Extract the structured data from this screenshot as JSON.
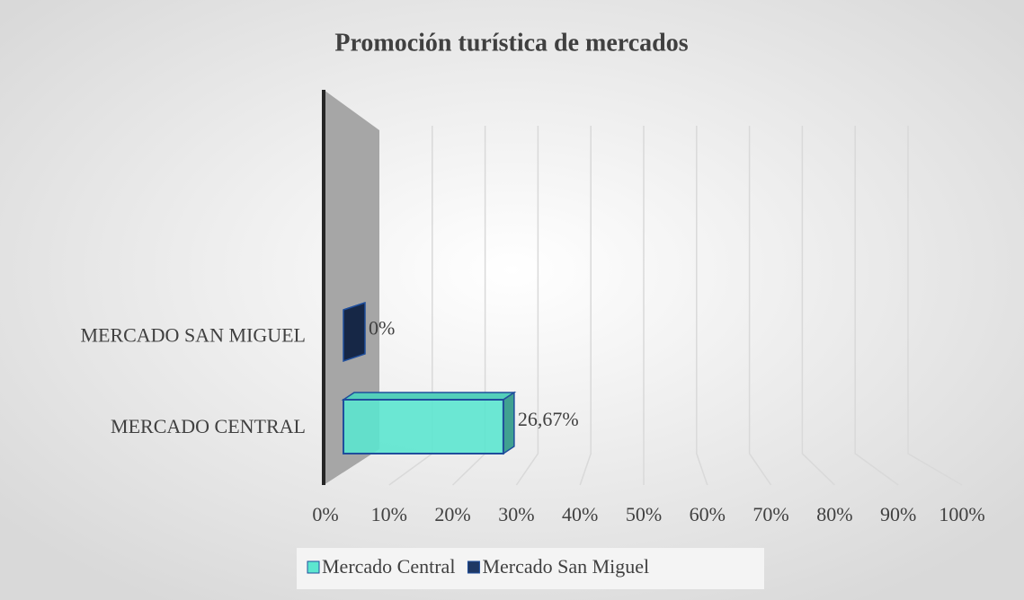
{
  "chart_data": {
    "type": "bar3d",
    "title": "Promoción turística de mercados",
    "categories": [
      "MERCADO SAN MIGUEL",
      "MERCADO CENTRAL"
    ],
    "series": [
      {
        "name": "Mercado Central",
        "color": "#5ce6cf",
        "values": [
          null,
          26.67
        ],
        "value_labels": [
          null,
          "26,67%"
        ]
      },
      {
        "name": "Mercado San Miguel",
        "color": "#1f3864",
        "values": [
          0,
          null
        ],
        "value_labels": [
          "0%",
          null
        ]
      }
    ],
    "xlim": [
      0,
      100
    ],
    "xticks": [
      {
        "value": 0,
        "label": "0%"
      },
      {
        "value": 10,
        "label": "10%"
      },
      {
        "value": 20,
        "label": "20%"
      },
      {
        "value": 30,
        "label": "30%"
      },
      {
        "value": 40,
        "label": "40%"
      },
      {
        "value": 50,
        "label": "50%"
      },
      {
        "value": 60,
        "label": "60%"
      },
      {
        "value": 70,
        "label": "70%"
      },
      {
        "value": 80,
        "label": "80%"
      },
      {
        "value": 90,
        "label": "90%"
      },
      {
        "value": 100,
        "label": "100%"
      }
    ],
    "grid": true,
    "legend": "bottom"
  }
}
